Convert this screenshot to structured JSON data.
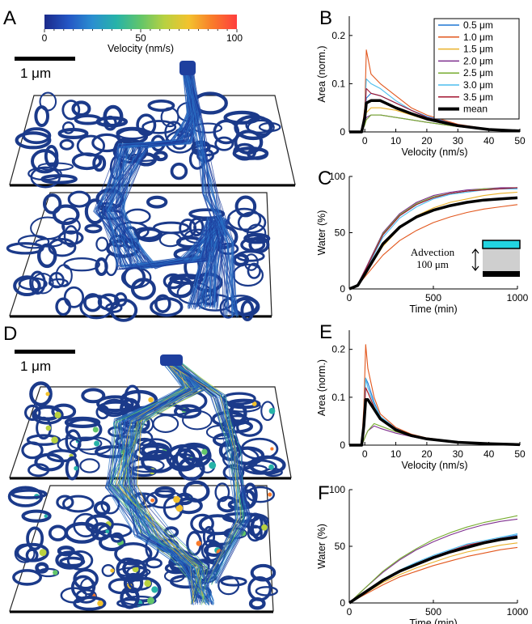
{
  "panel_labels": {
    "A": "A",
    "B": "B",
    "C": "C",
    "D": "D",
    "E": "E",
    "F": "F"
  },
  "colorbar": {
    "ticks": [
      "0",
      "50",
      "100"
    ],
    "label": "Velocity (nm/s)",
    "colormap": [
      "#1b2a8a",
      "#2456c5",
      "#2a8fd0",
      "#27b3a8",
      "#62c56a",
      "#b9d140",
      "#f3c22e",
      "#f97a2a",
      "#ff3e3e"
    ]
  },
  "scalebars": {
    "A": "1 μm",
    "D": "1 μm"
  },
  "inset": {
    "advection_label": "Advection",
    "distance_label": "100 μm",
    "colors": {
      "top": "#22d4e0",
      "bottom": "#000000",
      "gel": "#cfcfcf"
    }
  },
  "legend": {
    "entries": [
      "0.5 μm",
      "1.0 μm",
      "1.5 μm",
      "2.0 μm",
      "2.5 μm",
      "3.0 μm",
      "3.5 μm",
      "mean"
    ],
    "colors": [
      "#1f77d4",
      "#e2571d",
      "#eab12a",
      "#7e2f8e",
      "#77ac30",
      "#4dbeee",
      "#a2142f",
      "#000000"
    ]
  },
  "chart_data": [
    {
      "panel": "B",
      "type": "line",
      "xlabel": "Velocity (nm/s)",
      "ylabel": "Area (norm.)",
      "xlim": [
        -5,
        50
      ],
      "ylim": [
        0,
        0.24
      ],
      "xticks": [
        "0",
        "10",
        "20",
        "30",
        "40",
        "50"
      ],
      "yticks": [
        "0",
        "0.1",
        "0.2"
      ],
      "x": [
        -5,
        -1,
        0,
        0.5,
        2,
        5,
        10,
        15,
        20,
        30,
        40,
        50
      ],
      "series": [
        {
          "name": "0.5 μm",
          "values": [
            0,
            0,
            0.03,
            0.07,
            0.08,
            0.075,
            0.06,
            0.045,
            0.032,
            0.015,
            0.006,
            0.002
          ]
        },
        {
          "name": "1.0 μm",
          "values": [
            0,
            0,
            0.05,
            0.17,
            0.12,
            0.1,
            0.075,
            0.05,
            0.035,
            0.016,
            0.006,
            0.002
          ]
        },
        {
          "name": "1.5 μm",
          "values": [
            0,
            0,
            0.02,
            0.04,
            0.05,
            0.05,
            0.045,
            0.035,
            0.025,
            0.013,
            0.006,
            0.002
          ]
        },
        {
          "name": "2.0 μm",
          "values": [
            0,
            0,
            0.015,
            0.03,
            0.035,
            0.035,
            0.03,
            0.025,
            0.02,
            0.011,
            0.005,
            0.002
          ]
        },
        {
          "name": "2.5 μm",
          "values": [
            0,
            0,
            0.015,
            0.025,
            0.035,
            0.035,
            0.03,
            0.025,
            0.02,
            0.011,
            0.005,
            0.002
          ]
        },
        {
          "name": "3.0 μm",
          "values": [
            0,
            0,
            0.04,
            0.11,
            0.1,
            0.09,
            0.065,
            0.045,
            0.03,
            0.015,
            0.006,
            0.002
          ]
        },
        {
          "name": "3.5 μm",
          "values": [
            0,
            0,
            0.03,
            0.09,
            0.08,
            0.075,
            0.06,
            0.045,
            0.03,
            0.015,
            0.006,
            0.002
          ]
        },
        {
          "name": "mean",
          "values": [
            0,
            0,
            0.03,
            0.06,
            0.065,
            0.065,
            0.05,
            0.038,
            0.027,
            0.013,
            0.005,
            0.002
          ]
        }
      ]
    },
    {
      "panel": "C",
      "type": "line",
      "xlabel": "Time (min)",
      "ylabel": "Water (%)",
      "xlim": [
        0,
        1000
      ],
      "ylim": [
        0,
        100
      ],
      "xticks": [
        "0",
        "500",
        "1000"
      ],
      "yticks": [
        "0",
        "50",
        "100"
      ],
      "x": [
        0,
        50,
        100,
        200,
        300,
        400,
        500,
        600,
        700,
        800,
        900,
        1000
      ],
      "series": [
        {
          "name": "0.5 μm",
          "values": [
            0,
            4,
            18,
            48,
            65,
            75,
            81,
            85,
            87,
            88,
            89,
            89
          ]
        },
        {
          "name": "1.0 μm",
          "values": [
            0,
            3,
            12,
            30,
            43,
            52,
            59,
            64,
            68,
            71,
            73,
            75
          ]
        },
        {
          "name": "1.5 μm",
          "values": [
            0,
            3,
            14,
            38,
            54,
            65,
            72,
            77,
            80,
            83,
            85,
            86
          ]
        },
        {
          "name": "2.0 μm",
          "values": [
            0,
            4,
            19,
            50,
            67,
            77,
            83,
            86,
            88,
            89,
            90,
            90
          ]
        },
        {
          "name": "2.5 μm",
          "values": [
            0,
            4,
            18,
            49,
            66,
            76,
            82,
            85,
            87,
            89,
            89,
            90
          ]
        },
        {
          "name": "3.0 μm",
          "values": [
            0,
            4,
            17,
            46,
            63,
            73,
            80,
            84,
            86,
            88,
            89,
            89
          ]
        },
        {
          "name": "3.5 μm",
          "values": [
            0,
            4,
            18,
            48,
            65,
            75,
            81,
            85,
            87,
            88,
            89,
            90
          ]
        },
        {
          "name": "mean",
          "values": [
            0,
            3,
            15,
            40,
            55,
            64,
            70,
            74,
            77,
            79,
            80,
            81
          ]
        }
      ]
    },
    {
      "panel": "E",
      "type": "line",
      "xlabel": "Velocity (nm/s)",
      "ylabel": "Area (norm.)",
      "xlim": [
        -5,
        50
      ],
      "ylim": [
        0,
        0.24
      ],
      "xticks": [
        "0",
        "10",
        "20",
        "30",
        "40",
        "50"
      ],
      "yticks": [
        "0",
        "0.1",
        "0.2"
      ],
      "x": [
        -5,
        -1,
        -0.3,
        0.3,
        1,
        3,
        5,
        10,
        15,
        20,
        30,
        40,
        50
      ],
      "series": [
        {
          "name": "0.5 μm",
          "values": [
            0,
            0,
            0.05,
            0.14,
            0.13,
            0.09,
            0.06,
            0.035,
            0.022,
            0.014,
            0.007,
            0.003,
            0.001
          ]
        },
        {
          "name": "1.0 μm",
          "values": [
            0,
            0,
            0.08,
            0.21,
            0.16,
            0.1,
            0.065,
            0.037,
            0.023,
            0.015,
            0.007,
            0.003,
            0.001
          ]
        },
        {
          "name": "1.5 μm",
          "values": [
            0,
            0,
            0.05,
            0.12,
            0.11,
            0.08,
            0.055,
            0.032,
            0.02,
            0.013,
            0.006,
            0.003,
            0.001
          ]
        },
        {
          "name": "2.0 μm",
          "values": [
            0,
            0,
            0.01,
            0.02,
            0.03,
            0.04,
            0.035,
            0.025,
            0.018,
            0.012,
            0.006,
            0.003,
            0.001
          ]
        },
        {
          "name": "2.5 μm",
          "values": [
            0,
            0,
            0.01,
            0.02,
            0.03,
            0.045,
            0.04,
            0.028,
            0.019,
            0.013,
            0.006,
            0.003,
            0.001
          ]
        },
        {
          "name": "3.0 μm",
          "values": [
            0,
            0,
            0.06,
            0.14,
            0.12,
            0.085,
            0.06,
            0.034,
            0.021,
            0.014,
            0.007,
            0.003,
            0.001
          ]
        },
        {
          "name": "3.5 μm",
          "values": [
            0,
            0,
            0.05,
            0.12,
            0.11,
            0.08,
            0.055,
            0.032,
            0.02,
            0.013,
            0.006,
            0.003,
            0.001
          ]
        },
        {
          "name": "mean",
          "values": [
            0,
            0,
            0.04,
            0.095,
            0.095,
            0.075,
            0.055,
            0.032,
            0.02,
            0.013,
            0.006,
            0.003,
            0.001
          ]
        }
      ]
    },
    {
      "panel": "F",
      "type": "line",
      "xlabel": "Time (min)",
      "ylabel": "Water (%)",
      "xlim": [
        0,
        1000
      ],
      "ylim": [
        0,
        100
      ],
      "xticks": [
        "0",
        "500",
        "1000"
      ],
      "yticks": [
        "0",
        "50",
        "100"
      ],
      "x": [
        0,
        50,
        100,
        200,
        300,
        400,
        500,
        600,
        700,
        800,
        900,
        1000
      ],
      "series": [
        {
          "name": "0.5 μm",
          "values": [
            0,
            5,
            10,
            20,
            28,
            35,
            41,
            46,
            50,
            54,
            57,
            60
          ]
        },
        {
          "name": "1.0 μm",
          "values": [
            0,
            4,
            8,
            16,
            23,
            28,
            33,
            37,
            41,
            44,
            47,
            49
          ]
        },
        {
          "name": "1.5 μm",
          "values": [
            0,
            4,
            9,
            18,
            25,
            31,
            36,
            41,
            45,
            48,
            51,
            53
          ]
        },
        {
          "name": "2.0 μm",
          "values": [
            0,
            7,
            14,
            27,
            38,
            47,
            54,
            60,
            65,
            69,
            72,
            74
          ]
        },
        {
          "name": "2.5 μm",
          "values": [
            0,
            7,
            14,
            28,
            39,
            48,
            56,
            62,
            67,
            71,
            74,
            77
          ]
        },
        {
          "name": "3.0 μm",
          "values": [
            0,
            5,
            10,
            21,
            29,
            36,
            42,
            47,
            52,
            55,
            58,
            61
          ]
        },
        {
          "name": "3.5 μm",
          "values": [
            0,
            5,
            10,
            20,
            28,
            35,
            41,
            46,
            51,
            54,
            57,
            59
          ]
        },
        {
          "name": "mean",
          "values": [
            0,
            5,
            10,
            20,
            28,
            34,
            40,
            45,
            49,
            53,
            56,
            58
          ]
        }
      ]
    }
  ]
}
